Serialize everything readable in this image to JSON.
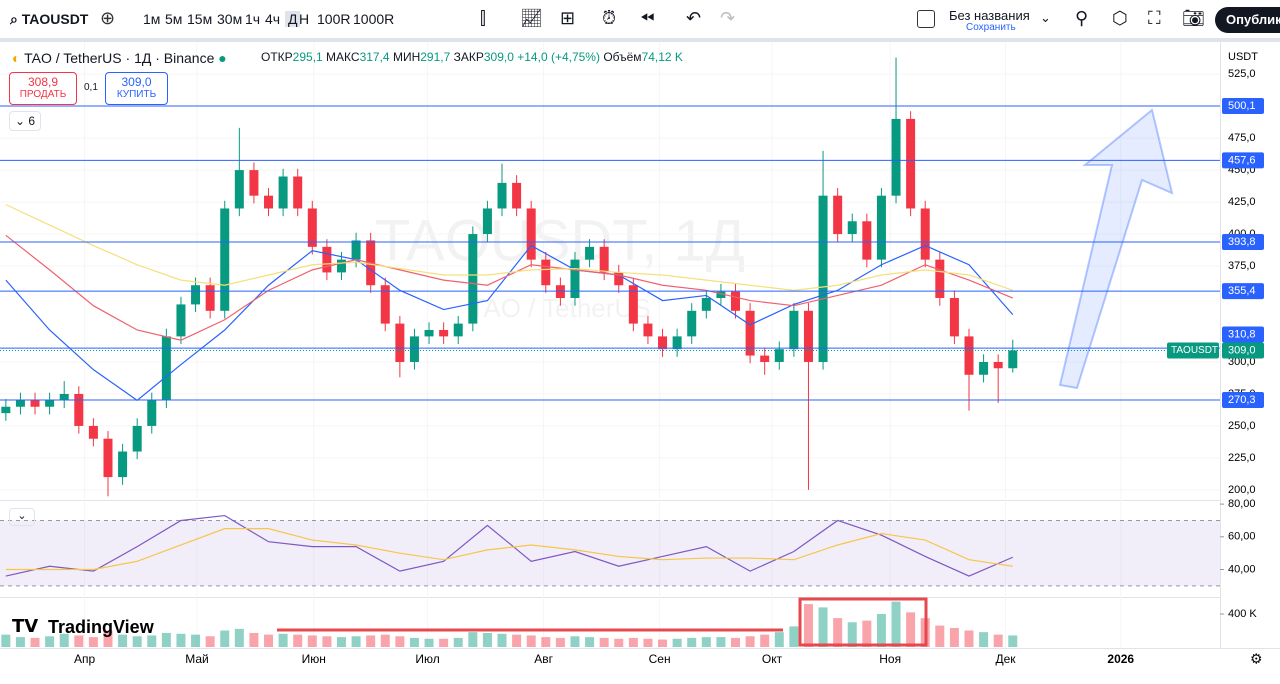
{
  "toolbar": {
    "symbol": "TAOUSDT",
    "intervals": [
      "1м",
      "5м",
      "15м",
      "30м",
      "1ч",
      "4ч",
      "Д",
      "Н",
      "100R",
      "1000R"
    ],
    "chart_name": "Без названия",
    "save": "Сохранить",
    "publish": "Опублико"
  },
  "header": {
    "title": "TAO / TetherUS · 1Д · Binance",
    "open_label": "ОТКР",
    "open": "295,1",
    "high_label": "МАКС",
    "high": "317,4",
    "low_label": "МИН",
    "low": "291,7",
    "close_label": "ЗАКР",
    "close": "309,0",
    "change": "+14,0 (+4,75%)",
    "volume_label": "Объём",
    "volume": "74,12 K"
  },
  "trade": {
    "sell_price": "308,9",
    "sell": "ПРОДАТЬ",
    "spread": "0,1",
    "buy_price": "309,0",
    "buy": "КУПИТЬ"
  },
  "indicators_count": "6",
  "currency": "USDT",
  "logo": "TradingView",
  "watermark": {
    "symbol": "TAOUSDT, 1Д",
    "name": "TAO / TetherUS"
  },
  "chart_data": [
    {
      "type": "candlestick",
      "up_color": "#089981",
      "down_color": "#f23645",
      "open": [
        260,
        265,
        270,
        265,
        270,
        275,
        250,
        240,
        210,
        230,
        250,
        270,
        320,
        345,
        360,
        340,
        420,
        450,
        430,
        420,
        445,
        420,
        390,
        370,
        380,
        395,
        360,
        330,
        300,
        320,
        325,
        320,
        330,
        400,
        420,
        440,
        420,
        380,
        360,
        350,
        380,
        390,
        370,
        360,
        330,
        320,
        310,
        320,
        340,
        350,
        355,
        340,
        305,
        300,
        310,
        340,
        300,
        430,
        400,
        410,
        380,
        430,
        490,
        420,
        380,
        350,
        320,
        290,
        300,
        295.1
      ],
      "high": [
        271,
        276,
        276,
        276,
        285,
        281,
        256,
        246,
        236,
        256,
        276,
        326,
        351,
        366,
        366,
        426,
        483,
        456,
        436,
        451,
        451,
        426,
        396,
        386,
        401,
        401,
        366,
        336,
        326,
        331,
        331,
        336,
        406,
        426,
        455,
        446,
        426,
        386,
        366,
        386,
        396,
        396,
        376,
        366,
        336,
        326,
        326,
        346,
        356,
        361,
        361,
        346,
        311,
        316,
        346,
        346,
        465,
        436,
        416,
        416,
        436,
        538,
        496,
        426,
        386,
        356,
        326,
        306,
        306,
        317.4
      ],
      "low": [
        254,
        259,
        259,
        259,
        264,
        244,
        234,
        195,
        204,
        224,
        244,
        264,
        314,
        339,
        334,
        334,
        414,
        424,
        414,
        414,
        414,
        384,
        364,
        364,
        374,
        354,
        324,
        288,
        294,
        314,
        314,
        314,
        324,
        394,
        414,
        414,
        374,
        354,
        344,
        344,
        374,
        364,
        354,
        324,
        314,
        304,
        304,
        314,
        334,
        344,
        334,
        299,
        290,
        294,
        304,
        200,
        294,
        394,
        394,
        374,
        374,
        424,
        414,
        374,
        344,
        314,
        262,
        284,
        268,
        291.7
      ],
      "close": [
        265,
        270,
        265,
        270,
        275,
        250,
        240,
        210,
        230,
        250,
        270,
        320,
        345,
        360,
        340,
        420,
        450,
        430,
        420,
        445,
        420,
        390,
        370,
        380,
        395,
        360,
        330,
        300,
        320,
        325,
        320,
        330,
        400,
        420,
        440,
        420,
        380,
        360,
        350,
        380,
        390,
        370,
        360,
        330,
        320,
        310,
        320,
        340,
        350,
        355,
        340,
        305,
        300,
        310,
        340,
        300,
        430,
        400,
        410,
        380,
        430,
        490,
        420,
        380,
        350,
        320,
        290,
        300,
        295.1,
        309.0
      ],
      "lines": [
        {
          "color": "#2962ff",
          "x": [
            0,
            3,
            6,
            9,
            12,
            15,
            18,
            21,
            24,
            27,
            30,
            33,
            36,
            39,
            42,
            45,
            48,
            51,
            54,
            57,
            60,
            63,
            66,
            69
          ],
          "values": [
            364,
            325,
            294,
            270,
            298,
            325,
            360,
            387,
            380,
            356,
            341,
            348,
            391,
            372,
            368,
            348,
            352,
            329,
            345,
            356,
            376,
            391,
            376,
            337
          ]
        },
        {
          "color": "#f0616d",
          "x": [
            0,
            3,
            6,
            9,
            12,
            15,
            18,
            21,
            24,
            27,
            30,
            33,
            36,
            39,
            42,
            45,
            48,
            51,
            54,
            57,
            60,
            63,
            66,
            69
          ],
          "values": [
            399,
            372,
            344,
            325,
            317,
            333,
            356,
            372,
            380,
            372,
            364,
            360,
            376,
            372,
            368,
            360,
            356,
            348,
            344,
            352,
            360,
            376,
            364,
            350
          ]
        },
        {
          "color": "#f5e07a",
          "x": [
            0,
            3,
            6,
            9,
            12,
            15,
            18,
            21,
            24,
            27,
            30,
            33,
            36,
            39,
            42,
            45,
            48,
            51,
            54,
            57,
            60,
            63,
            66,
            69
          ],
          "values": [
            423,
            407,
            391,
            376,
            364,
            360,
            368,
            376,
            378,
            373,
            368,
            368,
            372,
            373,
            370,
            368,
            364,
            360,
            356,
            360,
            368,
            372,
            368,
            356
          ]
        }
      ],
      "xlim": [
        -0.4,
        83.2
      ],
      "ylim": [
        192.1,
        551.7
      ],
      "xticks": [
        {
          "value": 5.4,
          "label": "Апр"
        },
        {
          "value": 13.1,
          "label": "Май"
        },
        {
          "value": 21.1,
          "label": "Июн"
        },
        {
          "value": 28.9,
          "label": "Июл"
        },
        {
          "value": 36.85,
          "label": "Авг"
        },
        {
          "value": 44.8,
          "label": "Сен"
        },
        {
          "value": 52.5,
          "label": "Окт"
        },
        {
          "value": 60.6,
          "label": "Ноя"
        },
        {
          "value": 68.5,
          "label": "Дек"
        },
        {
          "value": 76.4,
          "label": "2026"
        }
      ],
      "yticks": [
        {
          "value": 525,
          "label": "525,0"
        },
        {
          "value": 475,
          "label": "475,0"
        },
        {
          "value": 450,
          "label": "450,0"
        },
        {
          "value": 425,
          "label": "425,0"
        },
        {
          "value": 400,
          "label": "400,0"
        },
        {
          "value": 375,
          "label": "375,0"
        },
        {
          "value": 300,
          "label": "300,0"
        },
        {
          "value": 275,
          "label": "275,0"
        },
        {
          "value": 250,
          "label": "250,0"
        },
        {
          "value": 225,
          "label": "225,0"
        },
        {
          "value": 200,
          "label": "200,0"
        }
      ],
      "levels": [
        {
          "value": 500.1,
          "label": "500,1"
        },
        {
          "value": 457.6,
          "label": "457,6"
        },
        {
          "value": 393.8,
          "label": "393,8"
        },
        {
          "value": 355.4,
          "label": "355,4"
        },
        {
          "value": 310.8,
          "label": "310,8"
        },
        {
          "value": 270.3,
          "label": "270,3"
        }
      ],
      "last_price": {
        "value": 309.0,
        "label": "309,0",
        "symbol": "TAOUSDT"
      }
    },
    {
      "type": "line",
      "x": [
        0,
        3,
        6,
        9,
        12,
        15,
        18,
        21,
        24,
        27,
        30,
        33,
        36,
        39,
        42,
        45,
        48,
        51,
        54,
        57,
        60,
        63,
        66,
        69
      ],
      "series": [
        {
          "color": "#7e57c2",
          "values": [
            36,
            42,
            39,
            54,
            70,
            73,
            57,
            54,
            54,
            39,
            45,
            67,
            45,
            51,
            42,
            48,
            54,
            39,
            51,
            70,
            61,
            48,
            36,
            47.5
          ]
        },
        {
          "color": "#f7c548",
          "values": [
            40,
            40,
            40,
            45,
            55,
            65,
            65,
            58,
            55,
            50,
            46,
            52,
            55,
            52,
            48,
            46,
            47,
            47,
            46,
            55,
            62,
            58,
            46,
            42
          ]
        }
      ],
      "band": [
        30,
        70
      ],
      "ylim": [
        24.4,
        83.75
      ],
      "yticks": [
        {
          "value": 80,
          "label": "80,00"
        },
        {
          "value": 60,
          "label": "60,00"
        },
        {
          "value": 40,
          "label": "40,00"
        }
      ]
    },
    {
      "type": "bar",
      "values": [
        150,
        120,
        110,
        130,
        160,
        140,
        120,
        200,
        150,
        130,
        140,
        170,
        160,
        150,
        130,
        200,
        220,
        170,
        150,
        160,
        150,
        140,
        130,
        120,
        130,
        140,
        150,
        130,
        110,
        100,
        100,
        110,
        180,
        170,
        160,
        150,
        140,
        120,
        110,
        130,
        120,
        110,
        100,
        110,
        100,
        90,
        100,
        110,
        120,
        120,
        110,
        130,
        150,
        180,
        250,
        520,
        480,
        350,
        300,
        320,
        400,
        550,
        420,
        350,
        260,
        230,
        200,
        180,
        150,
        140
      ],
      "ylim": [
        0,
        606
      ],
      "yticks": [
        {
          "value": 400,
          "label": "400 K"
        }
      ]
    }
  ]
}
